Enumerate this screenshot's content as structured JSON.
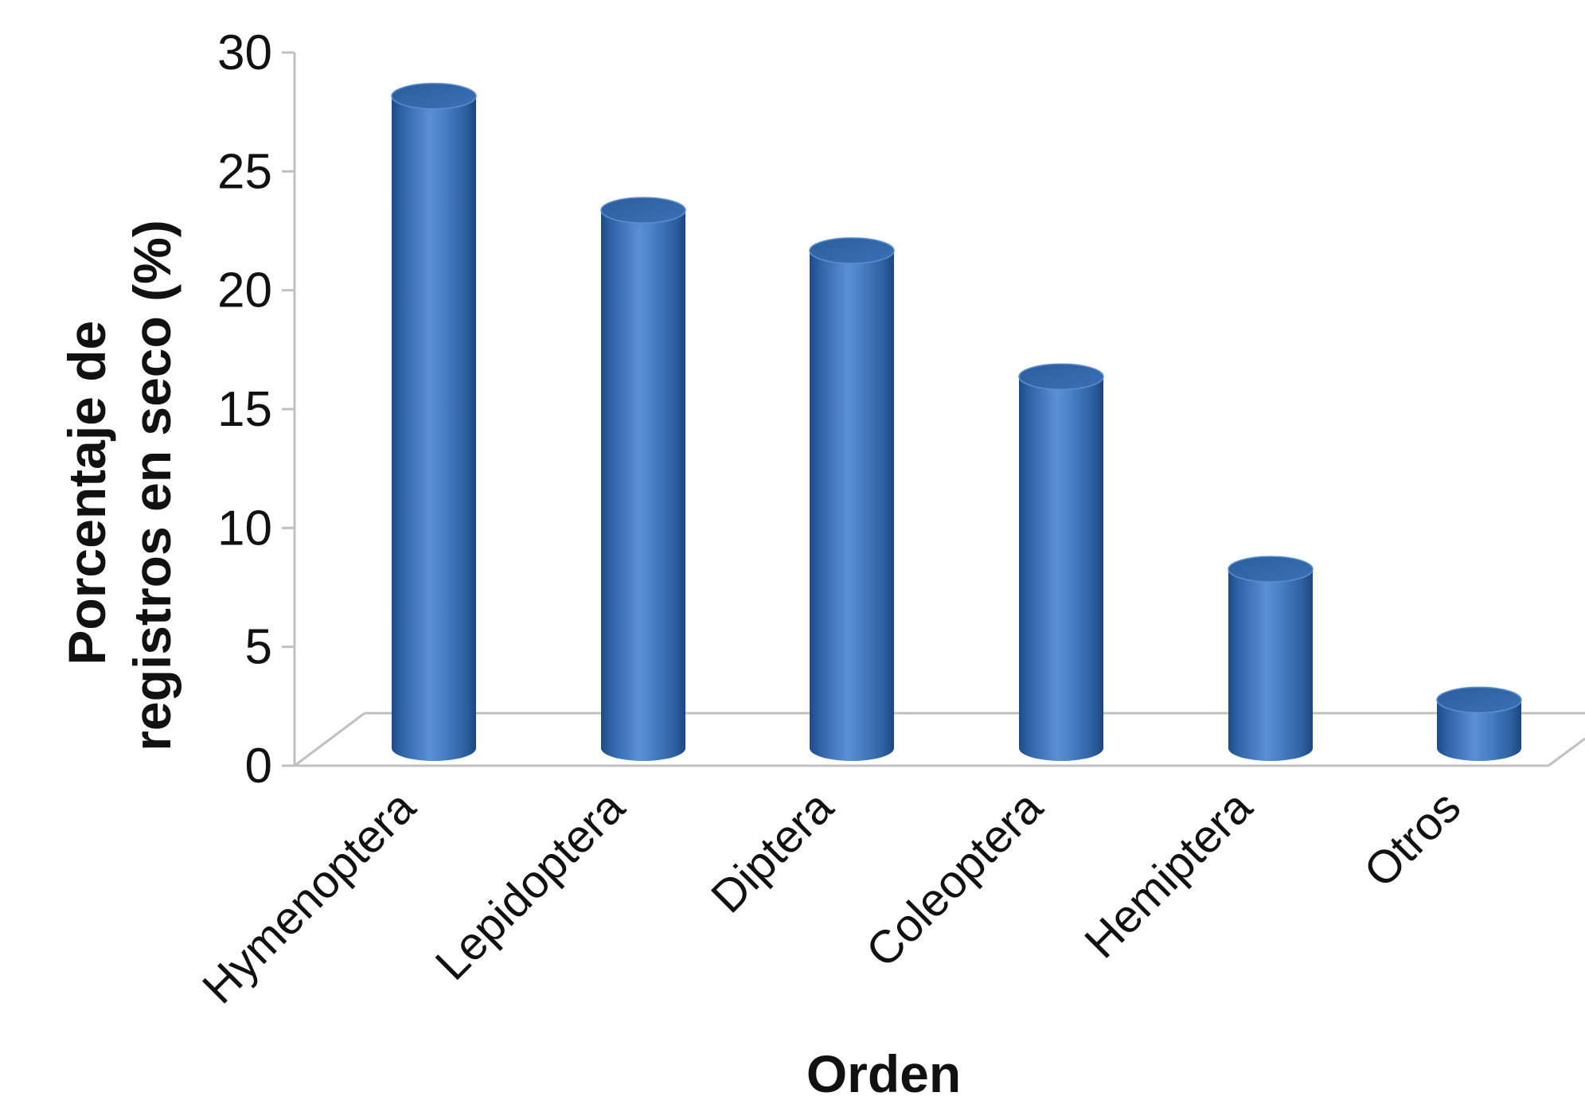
{
  "chart_data": {
    "type": "bar",
    "style": "3d-cylinder",
    "categories": [
      "Hymenoptera",
      "Lepidoptera",
      "Diptera",
      "Coleoptera",
      "Hemiptera",
      "Otros"
    ],
    "values": [
      28.5,
      23.7,
      22.0,
      16.7,
      8.6,
      3.1
    ],
    "title": "",
    "xlabel": "Orden",
    "ylabel_lines": [
      "Porcentaje de",
      "registros en seco (%)"
    ],
    "ylim": [
      0,
      30
    ],
    "yticks": [
      0,
      5,
      10,
      15,
      20,
      25,
      30
    ],
    "grid": false,
    "legend": "none",
    "colors": {
      "bar_main": "#3f78c0",
      "bar_dark": "#1f4a86",
      "bar_light": "#6b9fdc",
      "bar_top": "#2c609f",
      "axis": "#c0c0c0"
    }
  }
}
